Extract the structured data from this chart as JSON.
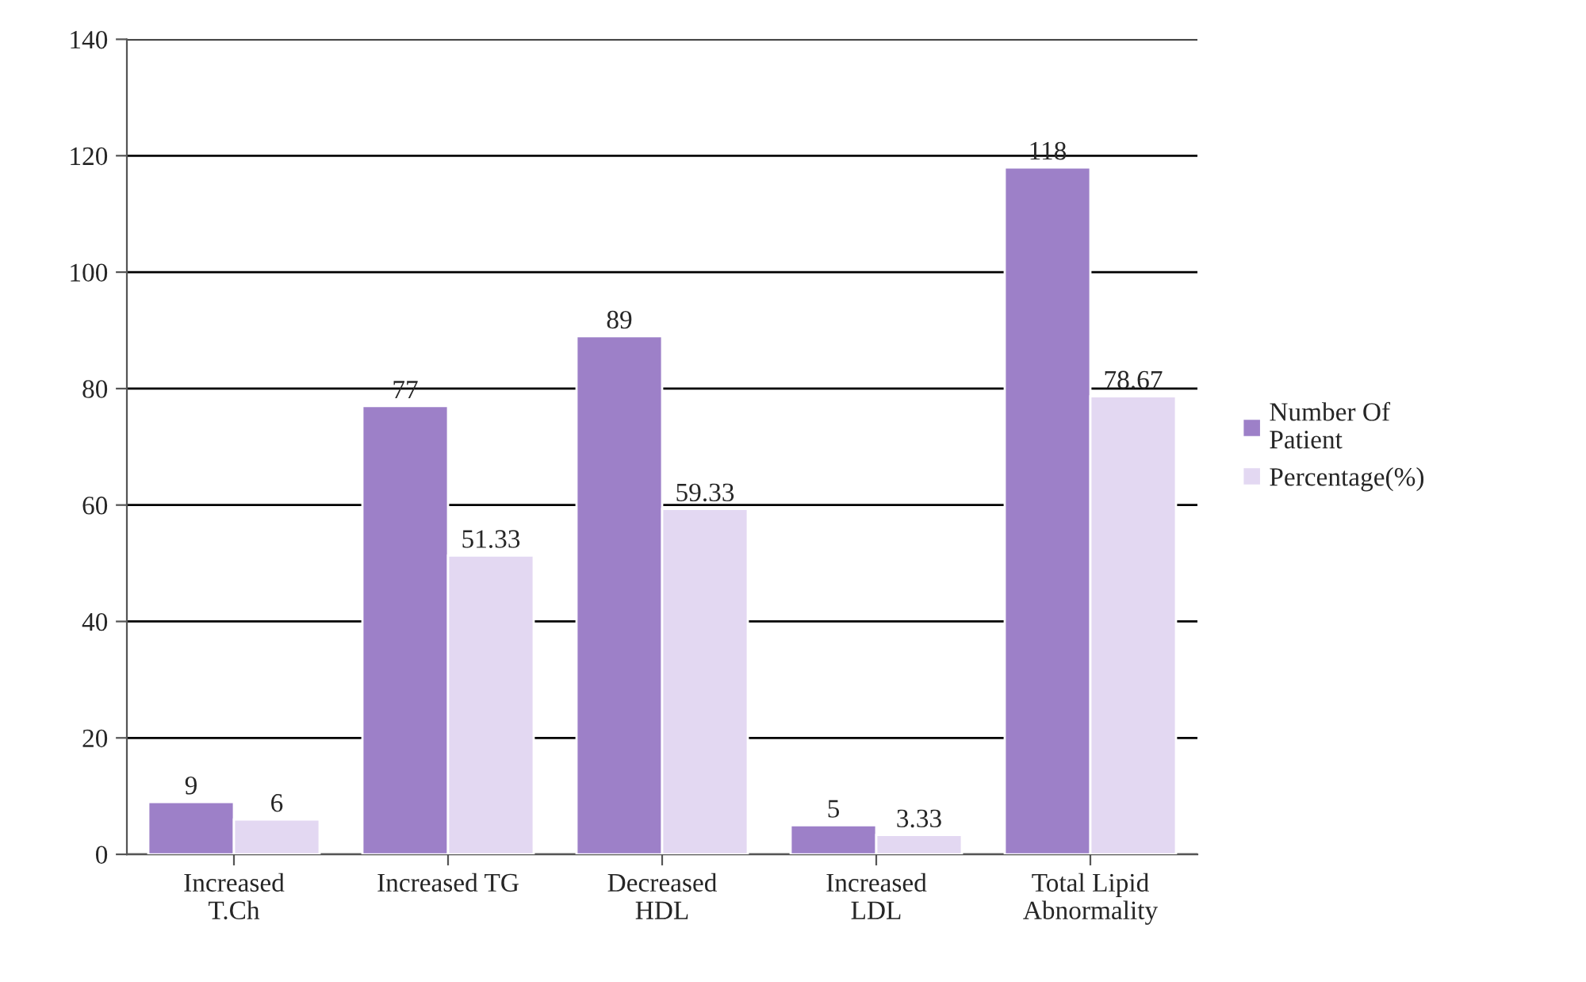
{
  "chart_data": {
    "type": "bar",
    "categories": [
      "Increased\nT.Ch",
      "Increased TG",
      "Decreased\nHDL",
      "Increased\nLDL",
      "Total Lipid\nAbnormality"
    ],
    "series": [
      {
        "name": "Number Of\nPatient",
        "color": "#9d80c8",
        "values": [
          9,
          77,
          89,
          5,
          118
        ]
      },
      {
        "name": "Percentage(%)",
        "color": "#e3d8f2",
        "values": [
          6,
          51.33,
          59.33,
          3.33,
          78.67
        ]
      }
    ],
    "ylim": [
      0,
      140
    ],
    "yticks": [
      0,
      20,
      40,
      60,
      80,
      100,
      120,
      140
    ],
    "grid": "y",
    "legend": "right",
    "data_labels": true
  }
}
